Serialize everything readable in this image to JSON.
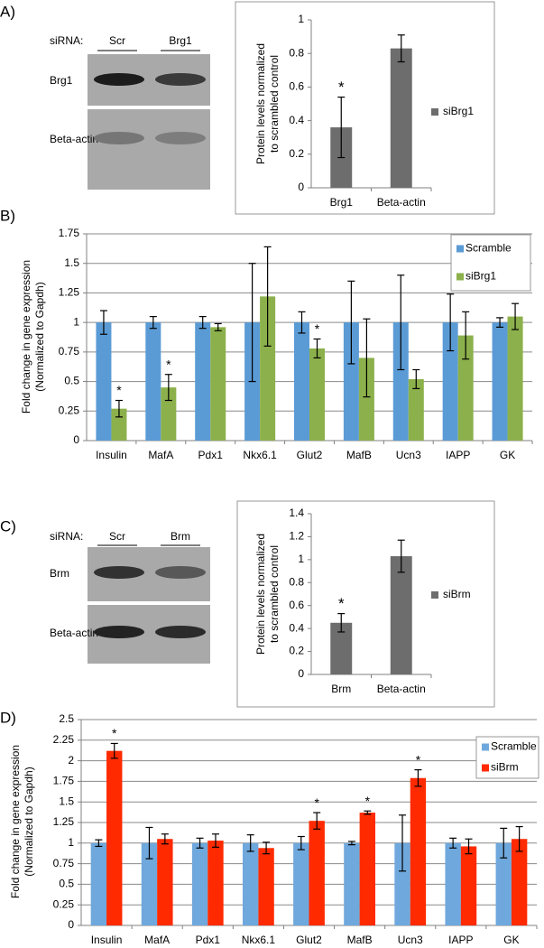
{
  "panel_labels": [
    "A)",
    "B)",
    "C)",
    "D)"
  ],
  "blots": [
    {
      "siRNA_label": "siRNA:",
      "lanes": [
        "Scr",
        "Brg1"
      ],
      "rows": [
        "Brg1",
        "Beta-actin"
      ]
    },
    {
      "siRNA_label": "siRNA:",
      "lanes": [
        "Scr",
        "Brm"
      ],
      "rows": [
        "Brm",
        "Beta-actin"
      ]
    }
  ],
  "chart_data": [
    {
      "type": "bar",
      "y_label": [
        "Protein levels normalized",
        "to scrambled control"
      ],
      "categories": [
        "Brg1",
        "Beta-actin"
      ],
      "series": [
        {
          "name": "siBrg1",
          "color": "#6d6d6d",
          "values": [
            0.36,
            0.83
          ],
          "errors": [
            0.18,
            0.08
          ],
          "significance": [
            "*",
            null
          ]
        }
      ],
      "ylim": [
        0,
        1
      ],
      "yticks": [
        0,
        0.2,
        0.4,
        0.6,
        0.8,
        1
      ],
      "grid": false,
      "legend": "right"
    },
    {
      "type": "bar",
      "y_label": [
        "Fold change in gene expression",
        "(Normalized to Gapdh)"
      ],
      "categories": [
        "Insulin",
        "MafA",
        "Pdx1",
        "Nkx6.1",
        "Glut2",
        "MafB",
        "Ucn3",
        "IAPP",
        "GK"
      ],
      "series": [
        {
          "name": "Scramble",
          "color": "#5b9bd5",
          "values": [
            1,
            1,
            1,
            1,
            1,
            1,
            1,
            1,
            1
          ],
          "errors": [
            0.1,
            0.05,
            0.05,
            0.5,
            0.09,
            0.35,
            0.4,
            0.24,
            0.04
          ]
        },
        {
          "name": "siBrg1",
          "color": "#8cb04b",
          "values": [
            0.27,
            0.45,
            0.96,
            1.22,
            0.78,
            0.7,
            0.52,
            0.89,
            1.05
          ],
          "errors": [
            0.07,
            0.11,
            0.03,
            0.42,
            0.08,
            0.33,
            0.08,
            0.2,
            0.11
          ],
          "significance": [
            "*",
            "*",
            null,
            null,
            "*",
            null,
            null,
            null,
            null
          ]
        }
      ],
      "ylim": [
        0,
        1.75
      ],
      "yticks": [
        0,
        0.25,
        0.5,
        0.75,
        1,
        1.25,
        1.5,
        1.75
      ],
      "grid": true,
      "legend": "top-right"
    },
    {
      "type": "bar",
      "y_label": [
        "Protein levels normalized",
        "to scrambled control"
      ],
      "categories": [
        "Brm",
        "Beta-actin"
      ],
      "series": [
        {
          "name": "siBrm",
          "color": "#6d6d6d",
          "values": [
            0.45,
            1.03
          ],
          "errors": [
            0.08,
            0.14
          ],
          "significance": [
            "*",
            null
          ]
        }
      ],
      "ylim": [
        0,
        1.4
      ],
      "yticks": [
        0,
        0.2,
        0.4,
        0.6,
        0.8,
        1,
        1.2,
        1.4
      ],
      "grid": false,
      "legend": "right"
    },
    {
      "type": "bar",
      "y_label": [
        "Fold change in gene expression",
        "(Normalized to Gapdh)"
      ],
      "categories": [
        "Insulin",
        "MafA",
        "Pdx1",
        "Nkx6.1",
        "Glut2",
        "MafB",
        "Ucn3",
        "IAPP",
        "GK"
      ],
      "series": [
        {
          "name": "Scramble",
          "color": "#6fa8dc",
          "values": [
            1,
            1,
            1,
            1,
            1,
            1,
            1,
            1,
            1
          ],
          "errors": [
            0.04,
            0.19,
            0.06,
            0.1,
            0.08,
            0.02,
            0.34,
            0.06,
            0.18
          ]
        },
        {
          "name": "siBrm",
          "color": "#ff2a00",
          "values": [
            2.12,
            1.05,
            1.03,
            0.94,
            1.27,
            1.37,
            1.79,
            0.96,
            1.05
          ],
          "errors": [
            0.09,
            0.06,
            0.08,
            0.07,
            0.1,
            0.02,
            0.1,
            0.09,
            0.15
          ],
          "significance": [
            "*",
            null,
            null,
            null,
            "*",
            "*",
            "*",
            null,
            null
          ]
        }
      ],
      "ylim": [
        0,
        2.5
      ],
      "yticks": [
        0,
        0.25,
        0.5,
        0.75,
        1,
        1.25,
        1.5,
        1.75,
        2,
        2.25,
        2.5
      ],
      "grid": true,
      "legend": "top-right"
    }
  ]
}
